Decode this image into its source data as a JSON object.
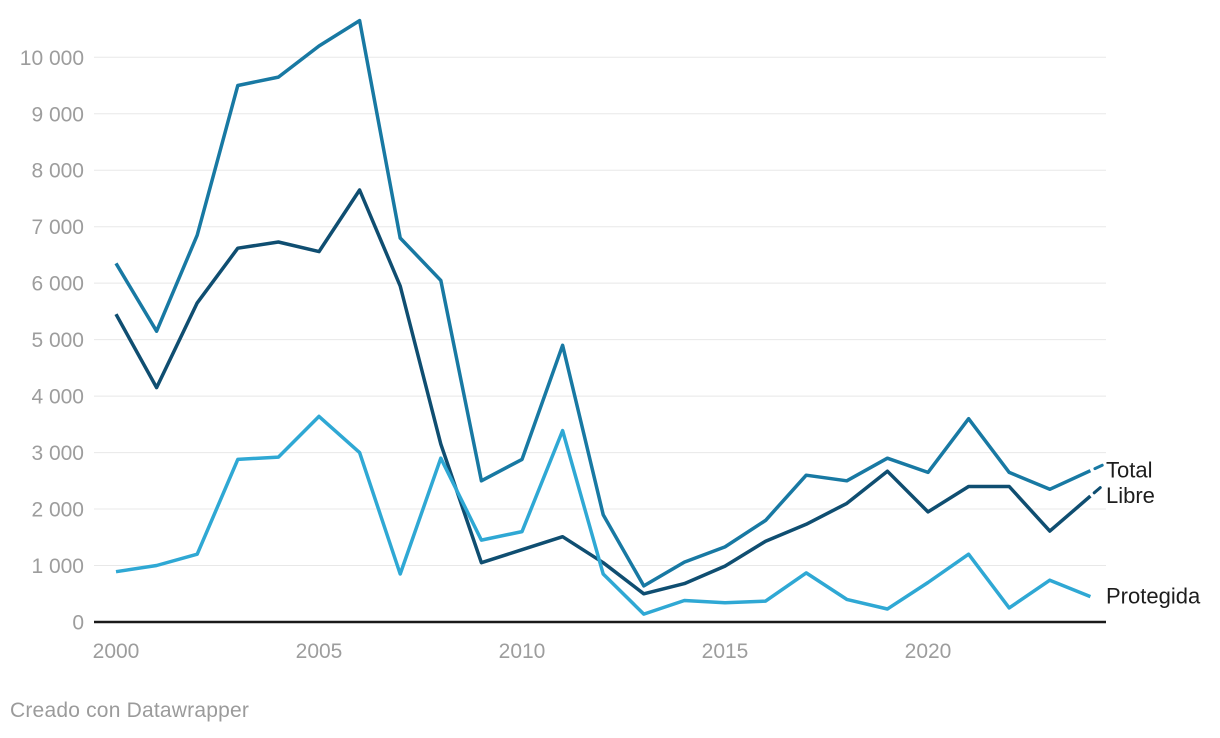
{
  "footer": {
    "prefix": "Creado con ",
    "link_label": "Datawrapper"
  },
  "colors": {
    "grid": "#e8e8e8",
    "axis_line": "#1a1a1a",
    "tick_text": "#9d9d9d",
    "series_label_text": "#1d1d1d",
    "footer_text": "#9b9b9b"
  },
  "chart_data": {
    "type": "line",
    "x": [
      2000,
      2001,
      2002,
      2003,
      2004,
      2005,
      2006,
      2007,
      2008,
      2009,
      2010,
      2011,
      2012,
      2013,
      2014,
      2015,
      2016,
      2017,
      2018,
      2019,
      2020,
      2021,
      2022,
      2023,
      2024
    ],
    "series": [
      {
        "name": "Total",
        "color": "#1879a3",
        "end_dash": true,
        "values": [
          6350,
          5150,
          6850,
          9500,
          9650,
          10200,
          10650,
          6800,
          6050,
          2500,
          2880,
          4900,
          1900,
          640,
          1060,
          1330,
          1800,
          2600,
          2500,
          2900,
          2650,
          3600,
          2650,
          2350,
          2680
        ]
      },
      {
        "name": "Libre",
        "color": "#0f4e71",
        "end_dash": true,
        "values": [
          5450,
          4150,
          5650,
          6620,
          6730,
          6560,
          7650,
          5950,
          3150,
          1050,
          1280,
          1510,
          1050,
          500,
          680,
          990,
          1430,
          1730,
          2100,
          2670,
          1950,
          2400,
          2400,
          1610,
          2230
        ]
      },
      {
        "name": "Protegida",
        "color": "#2fa8d4",
        "end_dash": false,
        "values": [
          890,
          1000,
          1200,
          2880,
          2920,
          3640,
          3000,
          850,
          2900,
          1450,
          1600,
          3390,
          850,
          140,
          380,
          340,
          370,
          870,
          400,
          230,
          700,
          1200,
          250,
          740,
          450
        ]
      }
    ],
    "title": "",
    "xlabel": "",
    "ylabel": "",
    "x_ticks": [
      2000,
      2005,
      2010,
      2015,
      2020
    ],
    "x_tick_labels": [
      "2000",
      "2005",
      "2010",
      "2015",
      "2020"
    ],
    "y_tick_values": [
      0,
      1000,
      2000,
      3000,
      4000,
      5000,
      6000,
      7000,
      8000,
      9000,
      10000
    ],
    "y_tick_labels": [
      "0",
      "1 000",
      "2 000",
      "3 000",
      "4 000",
      "5 000",
      "6 000",
      "7 000",
      "8 000",
      "9 000",
      "10 000"
    ],
    "ylim": [
      0,
      10650
    ],
    "xlim": [
      2000,
      2024
    ],
    "grid": "horizontal",
    "legend_position": "direct-labels-right"
  }
}
